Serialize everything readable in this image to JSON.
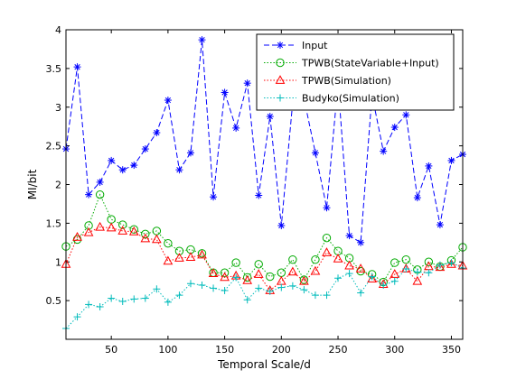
{
  "chart_data": {
    "type": "line",
    "xlabel": "Temporal Scale/d",
    "ylabel": "MI/bit",
    "xlim": [
      10,
      360
    ],
    "ylim": [
      0,
      4
    ],
    "xticks": [
      50,
      100,
      150,
      200,
      250,
      300,
      350
    ],
    "yticks": [
      0.5,
      1,
      1.5,
      2,
      2.5,
      3,
      3.5,
      4
    ],
    "xtick_labels": [
      "50",
      "100",
      "150",
      "200",
      "250",
      "300",
      "350"
    ],
    "ytick_labels": [
      "0.5",
      "1",
      "1.5",
      "2",
      "2.5",
      "3",
      "3.5",
      "4"
    ],
    "grid": false,
    "legend_position": "top-right",
    "x": [
      10,
      20,
      30,
      40,
      50,
      60,
      70,
      80,
      90,
      100,
      110,
      120,
      130,
      140,
      150,
      160,
      170,
      180,
      190,
      200,
      210,
      220,
      230,
      240,
      250,
      260,
      270,
      280,
      290,
      300,
      310,
      320,
      330,
      340,
      350,
      360
    ],
    "series": [
      {
        "name": "Input",
        "color": "#0000ff",
        "line": "dashed",
        "marker": "asterisk",
        "values": [
          2.46,
          3.52,
          1.87,
          2.03,
          2.31,
          2.19,
          2.25,
          2.46,
          2.67,
          3.09,
          2.19,
          2.41,
          3.87,
          1.84,
          3.19,
          2.73,
          3.31,
          1.86,
          2.88,
          1.47,
          3.06,
          3.11,
          2.41,
          1.7,
          3.31,
          1.34,
          1.25,
          3.16,
          2.43,
          2.74,
          2.9,
          1.83,
          2.24,
          1.48,
          2.31,
          2.39
        ]
      },
      {
        "name": "TPWB(StateVariable+Input)",
        "color": "#00aa00",
        "line": "dotted",
        "marker": "circle",
        "values": [
          1.2,
          1.29,
          1.47,
          1.87,
          1.55,
          1.48,
          1.42,
          1.36,
          1.4,
          1.24,
          1.14,
          1.16,
          1.11,
          0.86,
          0.86,
          0.99,
          0.8,
          0.97,
          0.81,
          0.86,
          1.03,
          0.77,
          1.03,
          1.31,
          1.14,
          1.05,
          0.88,
          0.84,
          0.74,
          0.99,
          1.03,
          0.9,
          1.0,
          0.94,
          1.02,
          1.19
        ]
      },
      {
        "name": "TPWB(Simulation)",
        "color": "#ff0000",
        "line": "dotted",
        "marker": "triangle",
        "values": [
          0.97,
          1.32,
          1.38,
          1.45,
          1.44,
          1.4,
          1.39,
          1.3,
          1.29,
          1.01,
          1.05,
          1.06,
          1.09,
          0.85,
          0.8,
          0.82,
          0.76,
          0.84,
          0.63,
          0.75,
          0.87,
          0.75,
          0.88,
          1.12,
          1.04,
          0.95,
          0.91,
          0.78,
          0.71,
          0.84,
          0.91,
          0.75,
          0.94,
          0.93,
          0.97,
          0.95
        ]
      },
      {
        "name": "Budyko(Simulation)",
        "color": "#00bbbb",
        "line": "dotted",
        "marker": "plus",
        "values": [
          0.14,
          0.29,
          0.45,
          0.42,
          0.53,
          0.49,
          0.52,
          0.53,
          0.65,
          0.48,
          0.57,
          0.72,
          0.7,
          0.66,
          0.63,
          0.8,
          0.51,
          0.66,
          0.62,
          0.67,
          0.69,
          0.64,
          0.57,
          0.57,
          0.79,
          0.85,
          0.6,
          0.81,
          0.7,
          0.75,
          0.91,
          0.87,
          0.86,
          0.96,
          0.99,
          0.92
        ]
      }
    ]
  }
}
